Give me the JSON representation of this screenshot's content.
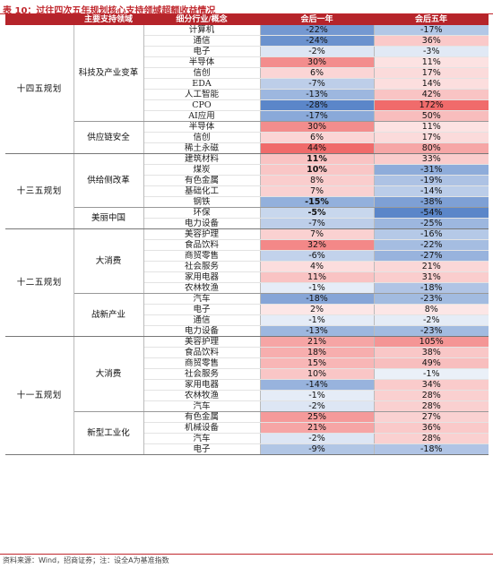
{
  "title": "表 10：过往四次五年规划核心支持领域超额收益情况",
  "headers": {
    "domain": "主要支持领域",
    "sub": "细分行业/概念",
    "y1": "会后一年",
    "y5": "会后五年"
  },
  "footer": "资料来源：Wind，招商证券；注：设全A为基准指数",
  "colors": {
    "header_bg": "#b5242a",
    "title_color": "#c0272d",
    "positive_max": "#f06b6b",
    "negative_max": "#5b86c9"
  },
  "plans": [
    {
      "name": "十四五规划",
      "groups": [
        {
          "name": "科技及产业变革",
          "rows": [
            {
              "sub": "计算机",
              "y1": "-22%",
              "y5": "-17%"
            },
            {
              "sub": "通信",
              "y1": "-24%",
              "y5": "36%"
            },
            {
              "sub": "电子",
              "y1": "-2%",
              "y5": "-3%"
            },
            {
              "sub": "半导体",
              "y1": "30%",
              "y5": "11%"
            },
            {
              "sub": "信创",
              "y1": "6%",
              "y5": "17%"
            },
            {
              "sub": "EDA",
              "y1": "-7%",
              "y5": "14%"
            },
            {
              "sub": "人工智能",
              "y1": "-13%",
              "y5": "42%"
            },
            {
              "sub": "CPO",
              "y1": "-28%",
              "y5": "172%"
            },
            {
              "sub": "AI应用",
              "y1": "-17%",
              "y5": "50%"
            }
          ]
        },
        {
          "name": "供应链安全",
          "rows": [
            {
              "sub": "半导体",
              "y1": "30%",
              "y5": "11%"
            },
            {
              "sub": "信创",
              "y1": "6%",
              "y5": "17%"
            },
            {
              "sub": "稀土永磁",
              "y1": "44%",
              "y5": "80%"
            }
          ]
        }
      ]
    },
    {
      "name": "十三五规划",
      "groups": [
        {
          "name": "供给侧改革",
          "rows": [
            {
              "sub": "建筑材料",
              "y1": "11%",
              "y5": "33%",
              "bold": true
            },
            {
              "sub": "煤炭",
              "y1": "10%",
              "y5": "-31%",
              "bold": true
            },
            {
              "sub": "有色金属",
              "y1": "8%",
              "y5": "-19%"
            },
            {
              "sub": "基础化工",
              "y1": "7%",
              "y5": "-14%"
            },
            {
              "sub": "钢铁",
              "y1": "-15%",
              "y5": "-38%",
              "bold": true
            }
          ]
        },
        {
          "name": "美丽中国",
          "rows": [
            {
              "sub": "环保",
              "y1": "-5%",
              "y5": "-54%",
              "bold": true
            },
            {
              "sub": "电力设备",
              "y1": "-7%",
              "y5": "-25%"
            }
          ]
        }
      ]
    },
    {
      "name": "十二五规划",
      "groups": [
        {
          "name": "大消费",
          "rows": [
            {
              "sub": "美容护理",
              "y1": "7%",
              "y5": "-16%"
            },
            {
              "sub": "食品饮料",
              "y1": "32%",
              "y5": "-22%"
            },
            {
              "sub": "商贸零售",
              "y1": "-6%",
              "y5": "-27%"
            },
            {
              "sub": "社会服务",
              "y1": "4%",
              "y5": "21%"
            },
            {
              "sub": "家用电器",
              "y1": "11%",
              "y5": "31%"
            },
            {
              "sub": "农林牧渔",
              "y1": "-1%",
              "y5": "-18%"
            }
          ]
        },
        {
          "name": "战新产业",
          "rows": [
            {
              "sub": "汽车",
              "y1": "-18%",
              "y5": "-23%"
            },
            {
              "sub": "电子",
              "y1": "2%",
              "y5": "8%"
            },
            {
              "sub": "通信",
              "y1": "-1%",
              "y5": "-2%"
            },
            {
              "sub": "电力设备",
              "y1": "-13%",
              "y5": "-23%"
            }
          ]
        }
      ]
    },
    {
      "name": "十一五规划",
      "groups": [
        {
          "name": "大消费",
          "rows": [
            {
              "sub": "美容护理",
              "y1": "21%",
              "y5": "105%"
            },
            {
              "sub": "食品饮料",
              "y1": "18%",
              "y5": "38%"
            },
            {
              "sub": "商贸零售",
              "y1": "15%",
              "y5": "49%"
            },
            {
              "sub": "社会服务",
              "y1": "10%",
              "y5": "-1%"
            },
            {
              "sub": "家用电器",
              "y1": "-14%",
              "y5": "34%"
            },
            {
              "sub": "农林牧渔",
              "y1": "-1%",
              "y5": "28%"
            },
            {
              "sub": "汽车",
              "y1": "-2%",
              "y5": "28%"
            }
          ]
        },
        {
          "name": "新型工业化",
          "rows": [
            {
              "sub": "有色金属",
              "y1": "25%",
              "y5": "27%"
            },
            {
              "sub": "机械设备",
              "y1": "21%",
              "y5": "36%"
            },
            {
              "sub": "汽车",
              "y1": "-2%",
              "y5": "28%"
            },
            {
              "sub": "电子",
              "y1": "-9%",
              "y5": "-18%"
            }
          ]
        }
      ]
    }
  ]
}
